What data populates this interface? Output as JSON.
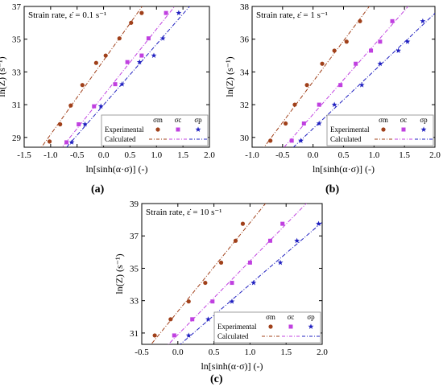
{
  "legend_text": {
    "experimental": "Experimental",
    "calculated": "Calculated",
    "series_headers": [
      "σm",
      "σc",
      "σp"
    ]
  },
  "colors": {
    "sigma_m": "#a0401a",
    "sigma_c": "#c040e0",
    "sigma_p": "#2020c0",
    "axis": "#000000"
  },
  "marker_shapes": [
    "circle",
    "square",
    "star"
  ],
  "chart_data": [
    {
      "type": "scatter",
      "panel_label": "(a)",
      "annotation": "Strain rate, ε̇ = 0.1 s⁻¹",
      "xlabel": "ln[sinh(α·σ)] (-)",
      "ylabel": "ln(Z) (s⁻¹)",
      "xlim": [
        -1.5,
        2.0
      ],
      "ylim": [
        28.4,
        37.0
      ],
      "xticks": [
        -1.5,
        -1.0,
        -0.5,
        0.0,
        0.5,
        1.0,
        1.5,
        2.0
      ],
      "yticks": [
        29,
        31,
        33,
        35,
        37
      ],
      "series": [
        {
          "name": "σm",
          "x": [
            -1.02,
            -0.82,
            -0.62,
            -0.4,
            -0.14,
            0.04,
            0.3,
            0.52,
            0.72
          ],
          "y": [
            28.75,
            29.8,
            30.95,
            32.2,
            33.55,
            34.0,
            35.05,
            36.0,
            36.6
          ]
        },
        {
          "name": "σc",
          "x": [
            -0.7,
            -0.47,
            -0.18,
            0.22,
            0.45,
            0.72,
            0.85,
            1.18
          ],
          "y": [
            28.7,
            29.8,
            30.9,
            32.25,
            33.6,
            34.0,
            35.05,
            36.6
          ]
        },
        {
          "name": "σp",
          "x": [
            -0.6,
            -0.35,
            -0.05,
            0.35,
            0.68,
            0.95,
            1.12,
            1.42
          ],
          "y": [
            28.7,
            29.8,
            30.9,
            32.25,
            33.6,
            34.0,
            35.05,
            36.6
          ]
        }
      ]
    },
    {
      "type": "scatter",
      "panel_label": "(b)",
      "annotation": "Strain rate, ε̇ = 1 s⁻¹",
      "xlabel": "ln[sinh(α·σ)] (-)",
      "ylabel": "ln(Z) (s⁻¹)",
      "xlim": [
        -1.0,
        2.0
      ],
      "ylim": [
        29.4,
        38.0
      ],
      "xticks": [
        -1.0,
        -0.5,
        0.0,
        0.5,
        1.0,
        1.5,
        2.0
      ],
      "yticks": [
        30,
        32,
        34,
        36,
        38
      ],
      "series": [
        {
          "name": "σm",
          "x": [
            -0.7,
            -0.45,
            -0.3,
            -0.1,
            0.15,
            0.35,
            0.55,
            0.77
          ],
          "y": [
            29.8,
            30.85,
            32.0,
            33.2,
            34.5,
            35.3,
            35.85,
            37.1
          ]
        },
        {
          "name": "σc",
          "x": [
            -0.35,
            -0.15,
            0.1,
            0.45,
            0.7,
            0.95,
            1.1,
            1.3
          ],
          "y": [
            29.8,
            30.85,
            32.0,
            33.2,
            34.5,
            35.3,
            35.85,
            37.1
          ]
        },
        {
          "name": "σp",
          "x": [
            -0.2,
            0.1,
            0.35,
            0.8,
            1.1,
            1.4,
            1.55,
            1.8
          ],
          "y": [
            29.8,
            30.85,
            32.0,
            33.2,
            34.5,
            35.3,
            35.85,
            37.1
          ]
        }
      ]
    },
    {
      "type": "scatter",
      "panel_label": "(c)",
      "annotation": "Strain rate, ε̇ = 10 s⁻¹",
      "xlabel": "ln[sinh(α·σ)] (-)",
      "ylabel": "ln(Z) (s⁻¹)",
      "xlim": [
        -0.5,
        2.0
      ],
      "ylim": [
        30.3,
        39.0
      ],
      "xticks": [
        -0.5,
        0.0,
        0.5,
        1.0,
        1.5,
        2.0
      ],
      "yticks": [
        31,
        33,
        35,
        37,
        39
      ],
      "series": [
        {
          "name": "σm",
          "x": [
            -0.32,
            -0.1,
            0.15,
            0.38,
            0.6,
            0.8,
            0.9
          ],
          "y": [
            30.85,
            31.85,
            32.95,
            34.1,
            35.35,
            36.7,
            37.75
          ]
        },
        {
          "name": "σc",
          "x": [
            -0.05,
            0.2,
            0.48,
            0.75,
            1.0,
            1.28,
            1.45
          ],
          "y": [
            30.85,
            31.85,
            32.95,
            34.1,
            35.35,
            36.7,
            37.75
          ]
        },
        {
          "name": "σp",
          "x": [
            0.15,
            0.42,
            0.75,
            1.05,
            1.42,
            1.65,
            1.95
          ],
          "y": [
            30.85,
            31.85,
            32.95,
            34.1,
            35.35,
            36.7,
            37.75
          ]
        }
      ]
    }
  ]
}
